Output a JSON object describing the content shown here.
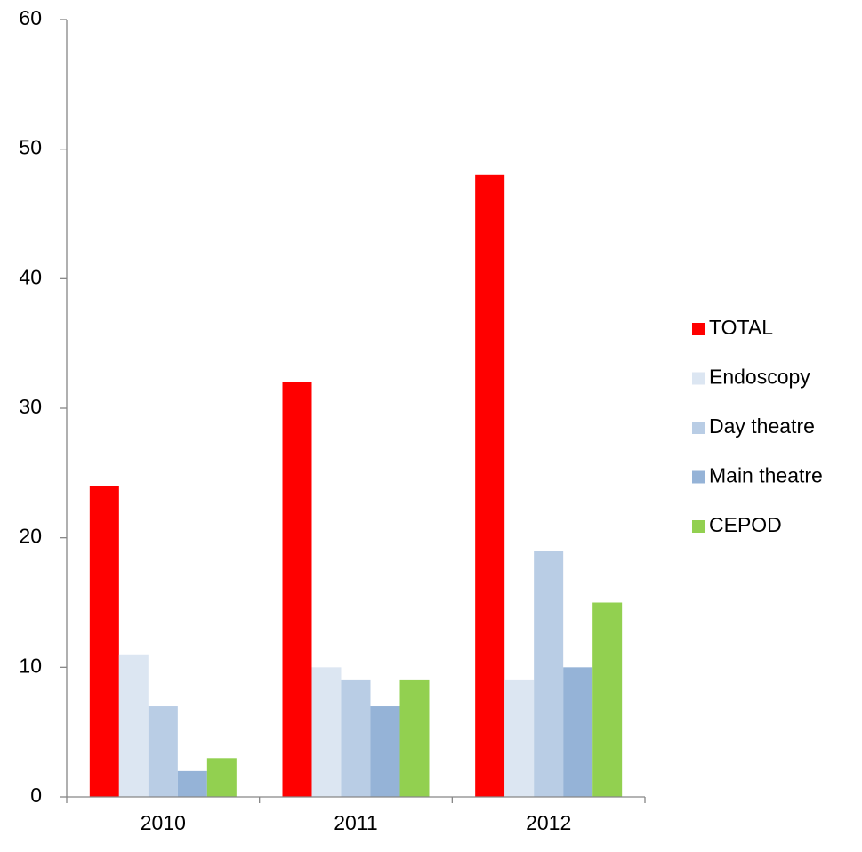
{
  "chart_data": {
    "type": "bar",
    "categories": [
      "2010",
      "2011",
      "2012"
    ],
    "series": [
      {
        "name": "TOTAL",
        "color": "#ff0000",
        "values": [
          24,
          32,
          48
        ]
      },
      {
        "name": "Endoscopy",
        "color": "#dce6f2",
        "values": [
          11,
          10,
          9
        ]
      },
      {
        "name": "Day theatre",
        "color": "#b9cde5",
        "values": [
          7,
          9,
          19
        ]
      },
      {
        "name": "Main theatre",
        "color": "#95b3d7",
        "values": [
          2,
          7,
          10
        ]
      },
      {
        "name": "CEPOD",
        "color": "#92d050",
        "values": [
          3,
          9,
          15
        ]
      }
    ],
    "ylim": [
      0,
      60
    ],
    "yticks": [
      0,
      10,
      20,
      30,
      40,
      50,
      60
    ],
    "legend": "right"
  }
}
